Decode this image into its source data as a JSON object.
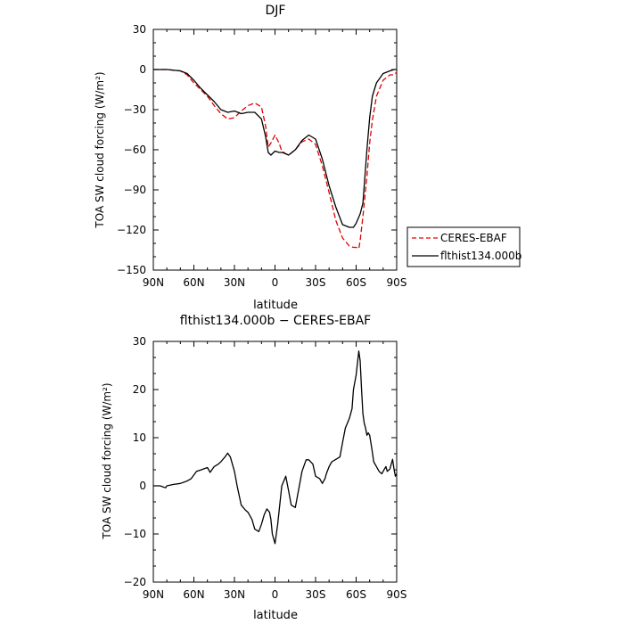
{
  "chart_data": [
    {
      "type": "line",
      "title": "DJF",
      "xlabel": "latitude",
      "ylabel": "TOA SW cloud forcing (W/m²)",
      "xlim": [
        90,
        -90
      ],
      "ylim": [
        -150,
        30
      ],
      "x_ticks": [
        90,
        60,
        30,
        0,
        -30,
        -60,
        -90
      ],
      "x_tick_labels": [
        "90N",
        "60N",
        "30N",
        "0",
        "30S",
        "60S",
        "90S"
      ],
      "y_ticks": [
        -150,
        -120,
        -90,
        -60,
        -30,
        0,
        30
      ],
      "y_tick_labels": [
        "−150",
        "−120",
        "−90",
        "−60",
        "−30",
        "0",
        "30"
      ],
      "legend_position": "right",
      "series": [
        {
          "name": "CERES-EBAF",
          "color": "#e00000",
          "dash": "dashed",
          "x": [
            90,
            80,
            70,
            65,
            60,
            55,
            50,
            45,
            40,
            35,
            30,
            25,
            20,
            15,
            10,
            7,
            5,
            3,
            0,
            -3,
            -5,
            -8,
            -10,
            -15,
            -20,
            -25,
            -30,
            -35,
            -40,
            -45,
            -50,
            -55,
            -58,
            -60,
            -62,
            -63,
            -65,
            -68,
            -70,
            -72,
            -75,
            -80,
            -85,
            -88,
            -90
          ],
          "y": [
            0,
            0,
            -1,
            -4,
            -10,
            -15,
            -20,
            -27,
            -33,
            -37,
            -36,
            -31,
            -27,
            -25,
            -28,
            -42,
            -58,
            -55,
            -49,
            -55,
            -61,
            -63,
            -64,
            -60,
            -54,
            -52,
            -56,
            -72,
            -92,
            -113,
            -126,
            -132,
            -133,
            -133,
            -134,
            -128,
            -110,
            -80,
            -55,
            -38,
            -20,
            -8,
            -4,
            -4,
            -2
          ]
        },
        {
          "name": "flthist134.000b",
          "color": "#000000",
          "dash": "solid",
          "x": [
            90,
            80,
            70,
            65,
            60,
            55,
            50,
            45,
            40,
            35,
            30,
            25,
            20,
            15,
            10,
            7,
            5,
            3,
            0,
            -3,
            -5,
            -8,
            -10,
            -15,
            -20,
            -25,
            -30,
            -35,
            -40,
            -45,
            -50,
            -55,
            -58,
            -60,
            -63,
            -65,
            -68,
            -70,
            -72,
            -75,
            -80,
            -85,
            -88,
            -90
          ],
          "y": [
            0,
            0,
            -1,
            -3,
            -8,
            -14,
            -19,
            -24,
            -30,
            -32,
            -31,
            -33,
            -32,
            -32,
            -37,
            -50,
            -62,
            -64,
            -61,
            -62,
            -62,
            -63,
            -64,
            -60,
            -53,
            -49,
            -52,
            -67,
            -87,
            -103,
            -116,
            -118,
            -118,
            -115,
            -108,
            -100,
            -60,
            -36,
            -20,
            -10,
            -3,
            -1,
            0,
            0
          ]
        }
      ]
    },
    {
      "type": "line",
      "title": "flthist134.000b − CERES-EBAF",
      "xlabel": "latitude",
      "ylabel": "TOA SW cloud forcing (W/m²)",
      "xlim": [
        90,
        -90
      ],
      "ylim": [
        -20,
        30
      ],
      "x_ticks": [
        90,
        60,
        30,
        0,
        -30,
        -60,
        -90
      ],
      "x_tick_labels": [
        "90N",
        "60N",
        "30N",
        "0",
        "30S",
        "60S",
        "90S"
      ],
      "y_ticks": [
        -20,
        -10,
        0,
        10,
        20,
        30
      ],
      "y_tick_labels": [
        "−20",
        "−10",
        "0",
        "10",
        "20",
        "30"
      ],
      "series": [
        {
          "color": "#000000",
          "dash": "solid",
          "x": [
            90,
            85,
            81,
            80,
            75,
            70,
            65,
            62,
            58,
            55,
            50,
            48,
            45,
            42,
            40,
            37,
            35,
            33,
            30,
            28,
            25,
            22,
            20,
            17,
            15,
            12,
            10,
            8,
            6,
            4,
            3,
            2,
            1,
            0,
            -2,
            -5,
            -8,
            -10,
            -12,
            -15,
            -18,
            -20,
            -23,
            -25,
            -28,
            -30,
            -33,
            -35,
            -37,
            -38,
            -40,
            -42,
            -45,
            -48,
            -50,
            -52,
            -55,
            -57,
            -58,
            -60,
            -61,
            -62,
            -63,
            -64,
            -65,
            -66,
            -67,
            -68,
            -69,
            -70,
            -72,
            -73,
            -75,
            -77,
            -79,
            -80,
            -81,
            -82,
            -83,
            -85,
            -86,
            -87,
            -88,
            -89,
            -90
          ],
          "y": [
            0,
            0,
            -0.4,
            0,
            0.3,
            0.5,
            1,
            1.5,
            3,
            3.3,
            3.8,
            2.8,
            4,
            4.5,
            5,
            6,
            6.8,
            6,
            3,
            0,
            -4,
            -5,
            -5.5,
            -7,
            -9,
            -9.5,
            -8,
            -6,
            -4.8,
            -5.5,
            -7,
            -10,
            -11,
            -12,
            -8,
            0,
            2,
            -1,
            -4,
            -4.5,
            0,
            3,
            5.4,
            5.4,
            4.5,
            2,
            1.5,
            0.5,
            1.5,
            2.5,
            4,
            5,
            5.5,
            6,
            9,
            12,
            14,
            16,
            20,
            23,
            25.5,
            28,
            26,
            20,
            15,
            13,
            12,
            10.5,
            11,
            10.5,
            7,
            5,
            4,
            3,
            2.5,
            3,
            3.5,
            4,
            3,
            3.5,
            4.5,
            5.5,
            3.5,
            2,
            2.5
          ]
        }
      ]
    }
  ]
}
